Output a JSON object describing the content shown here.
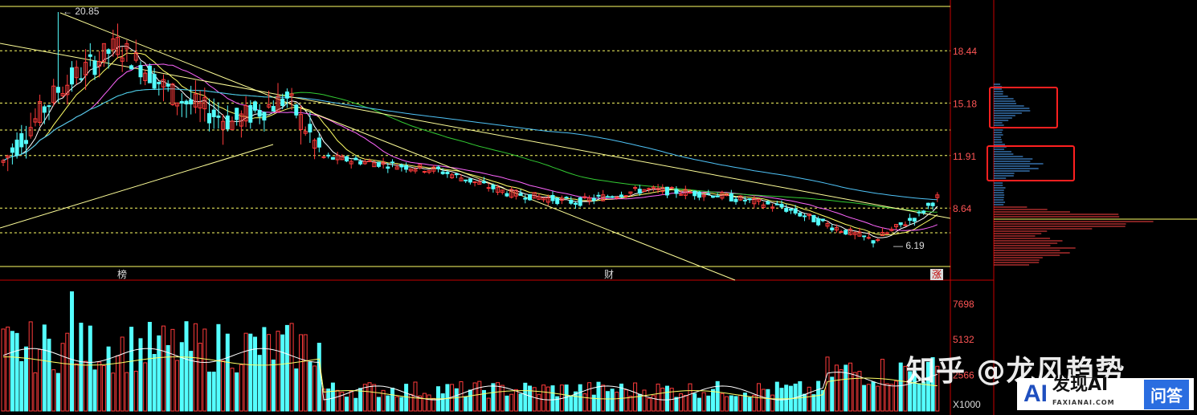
{
  "chart_data": [
    {
      "type": "candlestick",
      "title": "",
      "price_levels": [
        18.44,
        15.18,
        11.91,
        8.64
      ],
      "high_mark": "20.85",
      "low_mark": "6.19",
      "event_markers": [
        "榜",
        "财",
        "涨"
      ],
      "ylim": [
        5.0,
        21.2
      ],
      "overlays": [
        "moving averages",
        "trend lines"
      ],
      "colors": {
        "up": "#ff3b3b",
        "down": "#54ffff",
        "grid": "#ffff66",
        "axis": "#c80000"
      }
    },
    {
      "type": "bar",
      "title": "",
      "volume_ticks": [
        "7698",
        "5132",
        "2566"
      ],
      "unit_label": "X1000",
      "ylim": [
        0,
        8500
      ]
    },
    {
      "type": "bar",
      "title": "",
      "orientation": "horizontal",
      "description_of_side_panel": "price volume profile",
      "highlight_boxes": 2
    }
  ],
  "watermark": {
    "zhihu": "知乎 @龙风趋势"
  },
  "badge": {
    "logo": "AI",
    "name": "发现AI",
    "sub": "FAXIANAI.COM",
    "button": "问答"
  }
}
